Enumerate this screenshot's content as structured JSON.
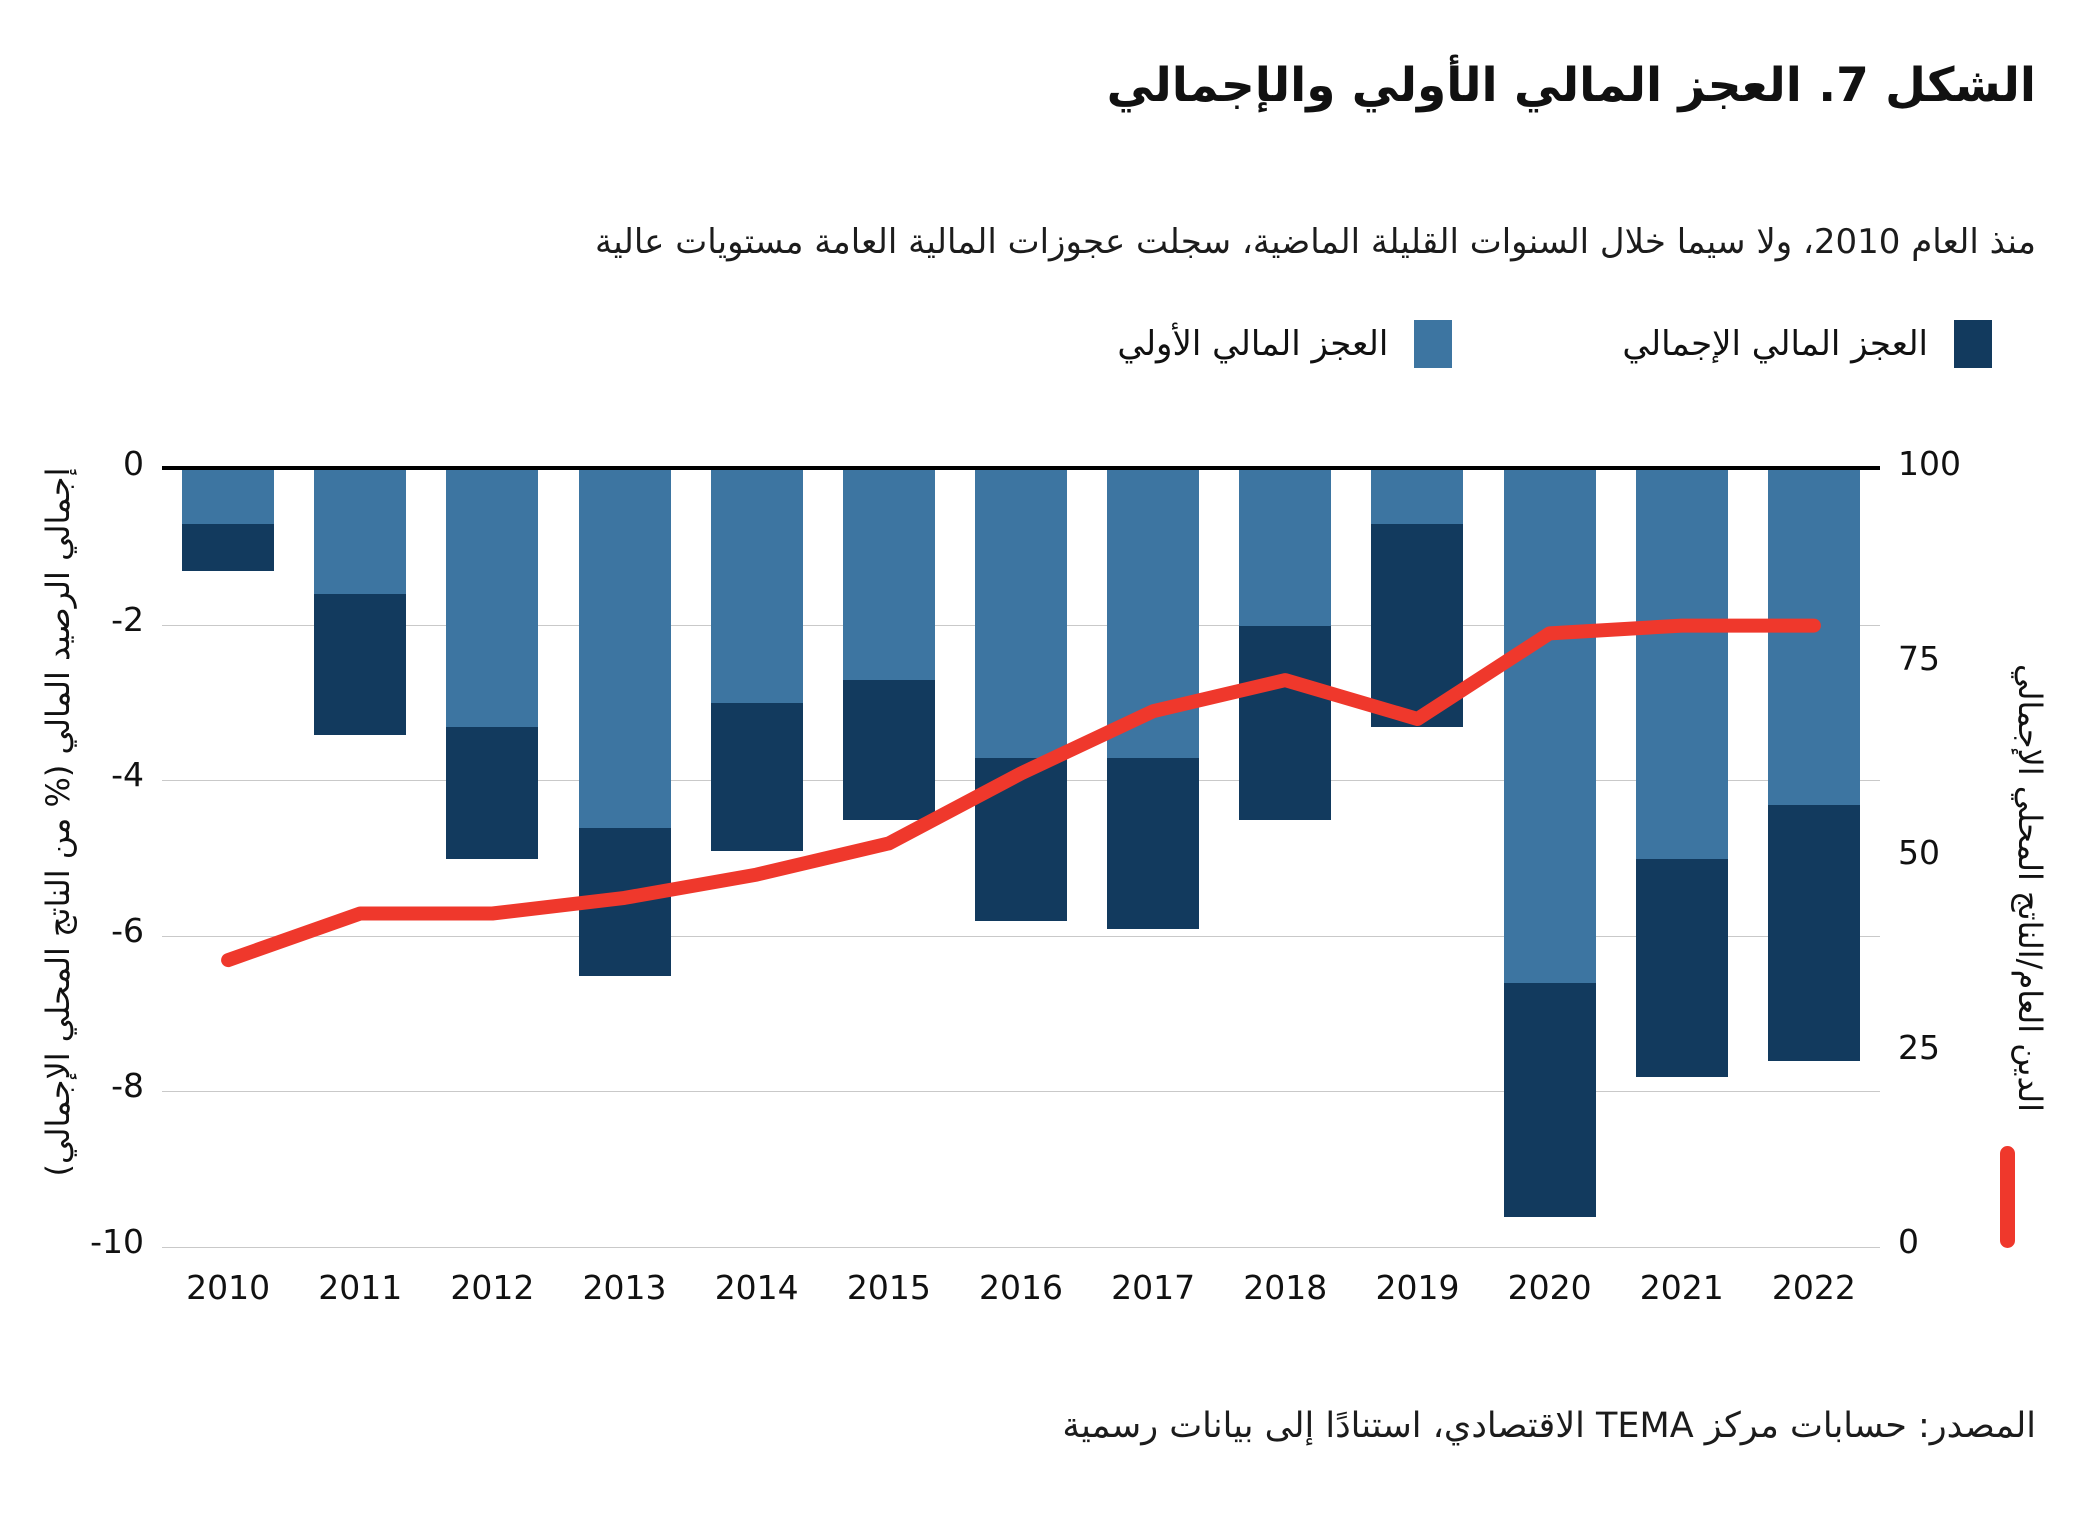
{
  "title": "الشكل 7. العجز المالي الأولي والإجمالي",
  "subtitle": "منذ العام 2010، ولا سيما خلال السنوات القليلة الماضية، سجلت عجوزات المالية العامة مستويات عالية",
  "legend": {
    "overall_label": "العجز المالي الإجمالي",
    "primary_label": "العجز المالي الأولي"
  },
  "source_note": "المصدر: حسابات مركز TEMA الاقتصادي، استنادًا إلى بيانات رسمية",
  "colors": {
    "primary_bar": "#3D75A1",
    "overall_bar": "#123A5E",
    "debt_line": "#EF382C",
    "gridline": "#c9c9c9",
    "zero_axis": "#000000"
  },
  "left_axis": {
    "title": "إجمالي الرصيد المالي (% من الناتج المحلي الإجمالي)",
    "ticks": [
      0,
      -2,
      -4,
      -6,
      -8,
      -10
    ],
    "min": -10,
    "max": 0
  },
  "right_axis": {
    "title": "الدين العام/الناتج المحلي الإجمالي",
    "ticks": [
      100,
      75,
      50,
      25,
      0
    ],
    "min": 0,
    "max": 100
  },
  "chart_data": {
    "type": "bar",
    "subtype": "stacked-bars-with-line",
    "categories": [
      2010,
      2011,
      2012,
      2013,
      2014,
      2015,
      2016,
      2017,
      2018,
      2019,
      2020,
      2021,
      2022
    ],
    "series": [
      {
        "name": "العجز المالي الأولي",
        "type": "bar",
        "axis": "left",
        "values": [
          -0.7,
          -1.6,
          -3.3,
          -4.6,
          -3.0,
          -2.7,
          -3.7,
          -3.7,
          -2.0,
          -0.7,
          -6.6,
          -5.0,
          -4.3
        ]
      },
      {
        "name": "العجز المالي الإجمالي",
        "type": "bar",
        "axis": "left",
        "values": [
          -1.3,
          -3.4,
          -5.0,
          -6.5,
          -4.9,
          -4.5,
          -5.8,
          -5.9,
          -4.5,
          -3.3,
          -9.6,
          -7.8,
          -7.6
        ]
      },
      {
        "name": "الدين العام/الناتج المحلي الإجمالي",
        "type": "line",
        "axis": "right",
        "values": [
          37,
          43,
          43,
          45,
          48,
          52,
          61,
          69,
          73,
          68,
          79,
          80,
          80
        ]
      }
    ],
    "left_ylim": [
      -10,
      0
    ],
    "right_ylim": [
      0,
      100
    ],
    "grid": true,
    "legend_position": "top"
  }
}
